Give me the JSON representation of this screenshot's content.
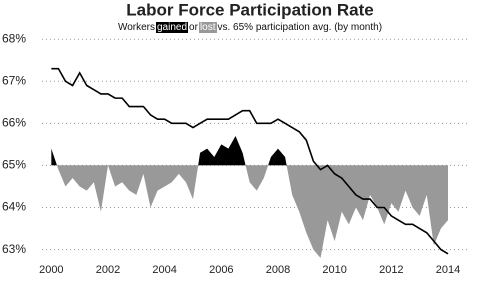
{
  "chart_data": {
    "type": "line-area",
    "title": "Labor Force Participation Rate",
    "subtitle": [
      "Workers",
      "gained",
      "or",
      "lost",
      "vs. 65% participation avg. (by month)"
    ],
    "x": [
      2000,
      2000.25,
      2000.5,
      2000.75,
      2001,
      2001.25,
      2001.5,
      2001.75,
      2002,
      2002.25,
      2002.5,
      2002.75,
      2003,
      2003.25,
      2003.5,
      2003.75,
      2004,
      2004.25,
      2004.5,
      2004.75,
      2005,
      2005.25,
      2005.5,
      2005.75,
      2006,
      2006.25,
      2006.5,
      2006.75,
      2007,
      2007.25,
      2007.5,
      2007.75,
      2008,
      2008.25,
      2008.5,
      2008.75,
      2009,
      2009.25,
      2009.5,
      2009.75,
      2010,
      2010.25,
      2010.5,
      2010.75,
      2011,
      2011.25,
      2011.5,
      2011.75,
      2012,
      2012.25,
      2012.5,
      2012.75,
      2013,
      2013.25,
      2013.5,
      2013.75,
      2014
    ],
    "series": [
      {
        "color": "#999999",
        "positive_color": "#000000",
        "baseline": 65,
        "values": [
          65.4,
          64.9,
          64.5,
          64.7,
          64.5,
          64.4,
          64.6,
          63.9,
          65.0,
          64.5,
          64.6,
          64.4,
          64.3,
          64.8,
          64.0,
          64.4,
          64.5,
          64.6,
          64.8,
          64.6,
          64.2,
          65.3,
          65.4,
          65.2,
          65.5,
          65.4,
          65.7,
          65.3,
          64.6,
          64.4,
          64.7,
          65.2,
          65.4,
          65.2,
          64.3,
          63.9,
          63.4,
          63.0,
          62.8,
          63.7,
          63.2,
          63.9,
          63.6,
          64.0,
          63.7,
          64.3,
          64.0,
          63.6,
          64.1,
          63.9,
          64.4,
          64.0,
          63.8,
          64.3,
          63.1,
          63.5,
          63.7
        ]
      },
      {
        "color": "#000000",
        "values": [
          67.3,
          67.3,
          67.0,
          66.9,
          67.2,
          66.9,
          66.8,
          66.7,
          66.7,
          66.6,
          66.6,
          66.4,
          66.4,
          66.4,
          66.2,
          66.1,
          66.1,
          66.0,
          66.0,
          66.0,
          65.9,
          66.0,
          66.1,
          66.1,
          66.1,
          66.1,
          66.2,
          66.3,
          66.3,
          66.0,
          66.0,
          66.0,
          66.1,
          66.0,
          65.9,
          65.8,
          65.6,
          65.1,
          64.9,
          65.0,
          64.8,
          64.7,
          64.5,
          64.3,
          64.2,
          64.2,
          64.0,
          64.0,
          63.8,
          63.7,
          63.6,
          63.6,
          63.5,
          63.4,
          63.2,
          63.0,
          62.9
        ]
      }
    ],
    "xlim": [
      1999.6,
      2014.6
    ],
    "xticks": [
      2000,
      2002,
      2004,
      2006,
      2008,
      2010,
      2012,
      2014
    ],
    "ylim": [
      62.8,
      68.1
    ],
    "yticks": [
      {
        "value": 63,
        "label": "63%"
      },
      {
        "value": 64,
        "label": "64%"
      },
      {
        "value": 65,
        "label": "65%"
      },
      {
        "value": 66,
        "label": "66%"
      },
      {
        "value": 67,
        "label": "67%"
      },
      {
        "value": 68,
        "label": "68%"
      }
    ],
    "grid": true
  }
}
